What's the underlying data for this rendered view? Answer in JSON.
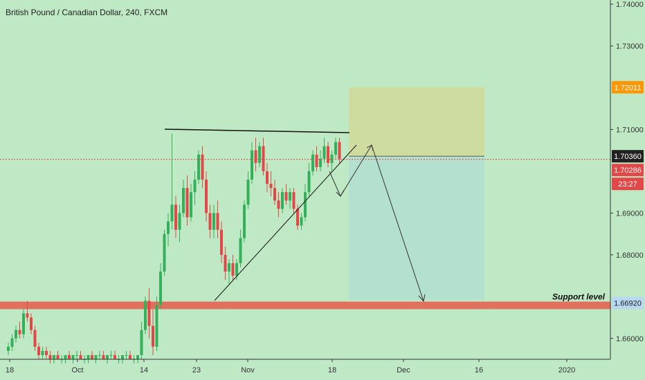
{
  "header": {
    "title": "British Pound / Canadian Dollar, 240, FXCM"
  },
  "colors": {
    "background": "#bfe8c4",
    "up_candle": "#35b05a",
    "down_candle": "#e24848",
    "support_zone": "#e2705f",
    "target_zone": "#cfdca0",
    "stop_zone": "#b4e0cf",
    "price_line": "#e24848",
    "current_price_tag": "#e24848",
    "entry_tag": "#222222",
    "target_tag": "#ff9800",
    "support_tag": "#b8d7f0"
  },
  "chart_data": {
    "type": "candlestick",
    "symbol": "British Pound / Canadian Dollar",
    "timeframe": "240",
    "source": "FXCM",
    "ylim": [
      1.655,
      1.741
    ],
    "y_ticks": [
      "1.74000",
      "1.73000",
      "1.71000",
      "1.69000",
      "1.68000",
      "1.66000"
    ],
    "x_ticks": [
      "18",
      "Oct",
      "14",
      "23",
      "Nov",
      "18",
      "Dec",
      "16",
      "2020"
    ],
    "price_labels": {
      "target": "1.72011",
      "entry": "1.70360",
      "current": "1.70286",
      "countdown": "23:27",
      "support": "1.66920"
    },
    "annotations": {
      "support_label": "Support level"
    },
    "candles": [
      [
        1.657,
        1.659,
        1.656,
        1.658
      ],
      [
        1.658,
        1.661,
        1.657,
        1.66
      ],
      [
        1.66,
        1.663,
        1.659,
        1.662
      ],
      [
        1.662,
        1.664,
        1.66,
        1.661
      ],
      [
        1.661,
        1.667,
        1.66,
        1.666
      ],
      [
        1.666,
        1.669,
        1.664,
        1.665
      ],
      [
        1.665,
        1.666,
        1.661,
        1.662
      ],
      [
        1.662,
        1.663,
        1.657,
        1.658
      ],
      [
        1.658,
        1.659,
        1.655,
        1.656
      ],
      [
        1.656,
        1.658,
        1.655,
        1.657
      ],
      [
        1.657,
        1.658,
        1.655,
        1.656
      ],
      [
        1.656,
        1.657,
        1.654,
        1.655
      ],
      [
        1.655,
        1.656,
        1.654,
        1.656
      ],
      [
        1.656,
        1.657,
        1.655,
        1.655
      ],
      [
        1.655,
        1.656,
        1.654,
        1.655
      ],
      [
        1.655,
        1.656,
        1.654,
        1.656
      ],
      [
        1.656,
        1.657,
        1.655,
        1.655
      ],
      [
        1.655,
        1.656,
        1.654,
        1.656
      ],
      [
        1.656,
        1.657,
        1.655,
        1.656
      ],
      [
        1.656,
        1.657,
        1.655,
        1.655
      ],
      [
        1.655,
        1.656,
        1.654,
        1.655
      ],
      [
        1.655,
        1.656,
        1.654,
        1.656
      ],
      [
        1.656,
        1.657,
        1.655,
        1.655
      ],
      [
        1.655,
        1.656,
        1.654,
        1.656
      ],
      [
        1.656,
        1.657,
        1.655,
        1.656
      ],
      [
        1.656,
        1.657,
        1.655,
        1.655
      ],
      [
        1.655,
        1.656,
        1.654,
        1.656
      ],
      [
        1.656,
        1.657,
        1.655,
        1.656
      ],
      [
        1.656,
        1.657,
        1.655,
        1.655
      ],
      [
        1.655,
        1.656,
        1.654,
        1.655
      ],
      [
        1.655,
        1.656,
        1.654,
        1.656
      ],
      [
        1.656,
        1.657,
        1.655,
        1.656
      ],
      [
        1.656,
        1.657,
        1.655,
        1.655
      ],
      [
        1.655,
        1.656,
        1.654,
        1.655
      ],
      [
        1.655,
        1.656,
        1.654,
        1.656
      ],
      [
        1.656,
        1.664,
        1.655,
        1.662
      ],
      [
        1.662,
        1.67,
        1.661,
        1.669
      ],
      [
        1.669,
        1.672,
        1.66,
        1.663
      ],
      [
        1.663,
        1.667,
        1.656,
        1.658
      ],
      [
        1.658,
        1.67,
        1.657,
        1.668
      ],
      [
        1.668,
        1.678,
        1.667,
        1.676
      ],
      [
        1.676,
        1.686,
        1.675,
        1.685
      ],
      [
        1.685,
        1.69,
        1.682,
        1.688
      ],
      [
        1.688,
        1.709,
        1.686,
        1.692
      ],
      [
        1.692,
        1.694,
        1.684,
        1.686
      ],
      [
        1.686,
        1.692,
        1.683,
        1.69
      ],
      [
        1.69,
        1.698,
        1.689,
        1.696
      ],
      [
        1.696,
        1.699,
        1.687,
        1.689
      ],
      [
        1.689,
        1.697,
        1.688,
        1.695
      ],
      [
        1.695,
        1.7,
        1.692,
        1.698
      ],
      [
        1.698,
        1.705,
        1.697,
        1.704
      ],
      [
        1.704,
        1.706,
        1.696,
        1.698
      ],
      [
        1.698,
        1.7,
        1.688,
        1.69
      ],
      [
        1.69,
        1.692,
        1.684,
        1.686
      ],
      [
        1.686,
        1.692,
        1.684,
        1.69
      ],
      [
        1.69,
        1.693,
        1.684,
        1.686
      ],
      [
        1.686,
        1.688,
        1.678,
        1.68
      ],
      [
        1.68,
        1.682,
        1.674,
        1.676
      ],
      [
        1.676,
        1.679,
        1.673,
        1.678
      ],
      [
        1.678,
        1.68,
        1.674,
        1.675
      ],
      [
        1.675,
        1.679,
        1.674,
        1.678
      ],
      [
        1.678,
        1.686,
        1.677,
        1.684
      ],
      [
        1.684,
        1.693,
        1.683,
        1.692
      ],
      [
        1.692,
        1.7,
        1.691,
        1.698
      ],
      [
        1.698,
        1.707,
        1.697,
        1.705
      ],
      [
        1.705,
        1.708,
        1.7,
        1.702
      ],
      [
        1.702,
        1.707,
        1.701,
        1.706
      ],
      [
        1.706,
        1.708,
        1.699,
        1.7
      ],
      [
        1.7,
        1.702,
        1.695,
        1.697
      ],
      [
        1.697,
        1.7,
        1.694,
        1.696
      ],
      [
        1.696,
        1.698,
        1.692,
        1.693
      ],
      [
        1.693,
        1.695,
        1.689,
        1.691
      ],
      [
        1.691,
        1.696,
        1.69,
        1.695
      ],
      [
        1.695,
        1.697,
        1.692,
        1.693
      ],
      [
        1.693,
        1.696,
        1.691,
        1.695
      ],
      [
        1.695,
        1.696,
        1.69,
        1.691
      ],
      [
        1.691,
        1.692,
        1.686,
        1.687
      ],
      [
        1.687,
        1.69,
        1.686,
        1.689
      ],
      [
        1.689,
        1.697,
        1.688,
        1.695
      ],
      [
        1.695,
        1.702,
        1.694,
        1.7
      ],
      [
        1.7,
        1.705,
        1.699,
        1.704
      ],
      [
        1.704,
        1.706,
        1.7,
        1.701
      ],
      [
        1.701,
        1.705,
        1.7,
        1.703
      ],
      [
        1.703,
        1.708,
        1.702,
        1.706
      ],
      [
        1.706,
        1.707,
        1.701,
        1.702
      ],
      [
        1.702,
        1.705,
        1.7,
        1.704
      ],
      [
        1.704,
        1.708,
        1.703,
        1.707
      ],
      [
        1.707,
        1.708,
        1.702,
        1.703
      ]
    ],
    "support_zone": [
      1.667,
      1.6688
    ],
    "trade_setup": {
      "target": 1.72011,
      "entry": 1.7036,
      "stop": 1.6692
    }
  }
}
